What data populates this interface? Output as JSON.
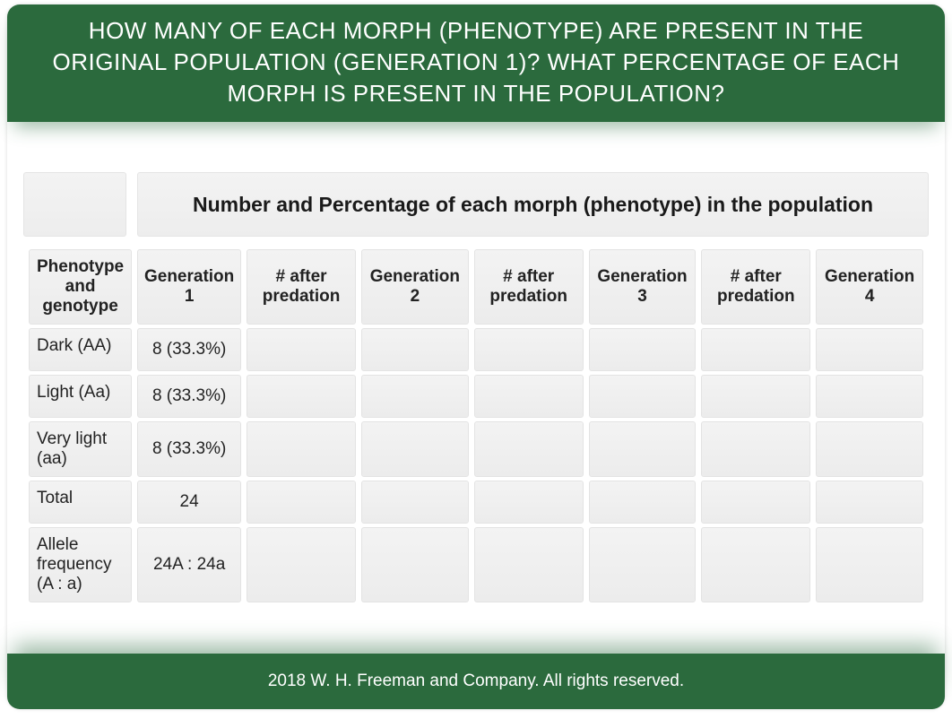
{
  "header": {
    "title": "HOW MANY OF EACH MORPH (PHENOTYPE) ARE PRESENT IN THE ORIGINAL POPULATION (GENERATION 1)? WHAT PERCENTAGE OF EACH MORPH IS PRESENT IN THE POPULATION?"
  },
  "table": {
    "title": "Number and Percentage of each morph (phenotype) in the population",
    "columns": {
      "c0": "Phenotype and genotype",
      "c1": "Generation 1",
      "c2": "# after predation",
      "c3": "Generation 2",
      "c4": "# after predation",
      "c5": "Generation 3",
      "c6": "# after predation",
      "c7": "Generation 4"
    },
    "rows": {
      "r0": {
        "label": "Dark (AA)",
        "gen1": "8 (33.3%)",
        "p1": "",
        "gen2": "",
        "p2": "",
        "gen3": "",
        "p3": "",
        "gen4": ""
      },
      "r1": {
        "label": "Light (Aa)",
        "gen1": "8 (33.3%)",
        "p1": "",
        "gen2": "",
        "p2": "",
        "gen3": "",
        "p3": "",
        "gen4": ""
      },
      "r2": {
        "label": "Very light (aa)",
        "gen1": "8 (33.3%)",
        "p1": "",
        "gen2": "",
        "p2": "",
        "gen3": "",
        "p3": "",
        "gen4": ""
      },
      "r3": {
        "label": "Total",
        "gen1": "24",
        "p1": "",
        "gen2": "",
        "p2": "",
        "gen3": "",
        "p3": "",
        "gen4": ""
      },
      "r4": {
        "label": "Allele frequency (A : a)",
        "gen1": "24A : 24a",
        "p1": "",
        "gen2": "",
        "p2": "",
        "gen3": "",
        "p3": "",
        "gen4": ""
      }
    },
    "styling": {
      "header_bg": "#2b6a3d",
      "header_text_color": "#ffffff",
      "cell_bg_gradient_top": "#f3f3f3",
      "cell_bg_gradient_bottom": "#ececec",
      "cell_border_color": "#e3e3e3",
      "title_fontsize": 23,
      "col_header_fontsize": 19,
      "cell_fontsize": 19,
      "col_header_fontweight": 700
    }
  },
  "footer": {
    "text": "2018 W. H. Freeman and Company.  All rights reserved."
  }
}
